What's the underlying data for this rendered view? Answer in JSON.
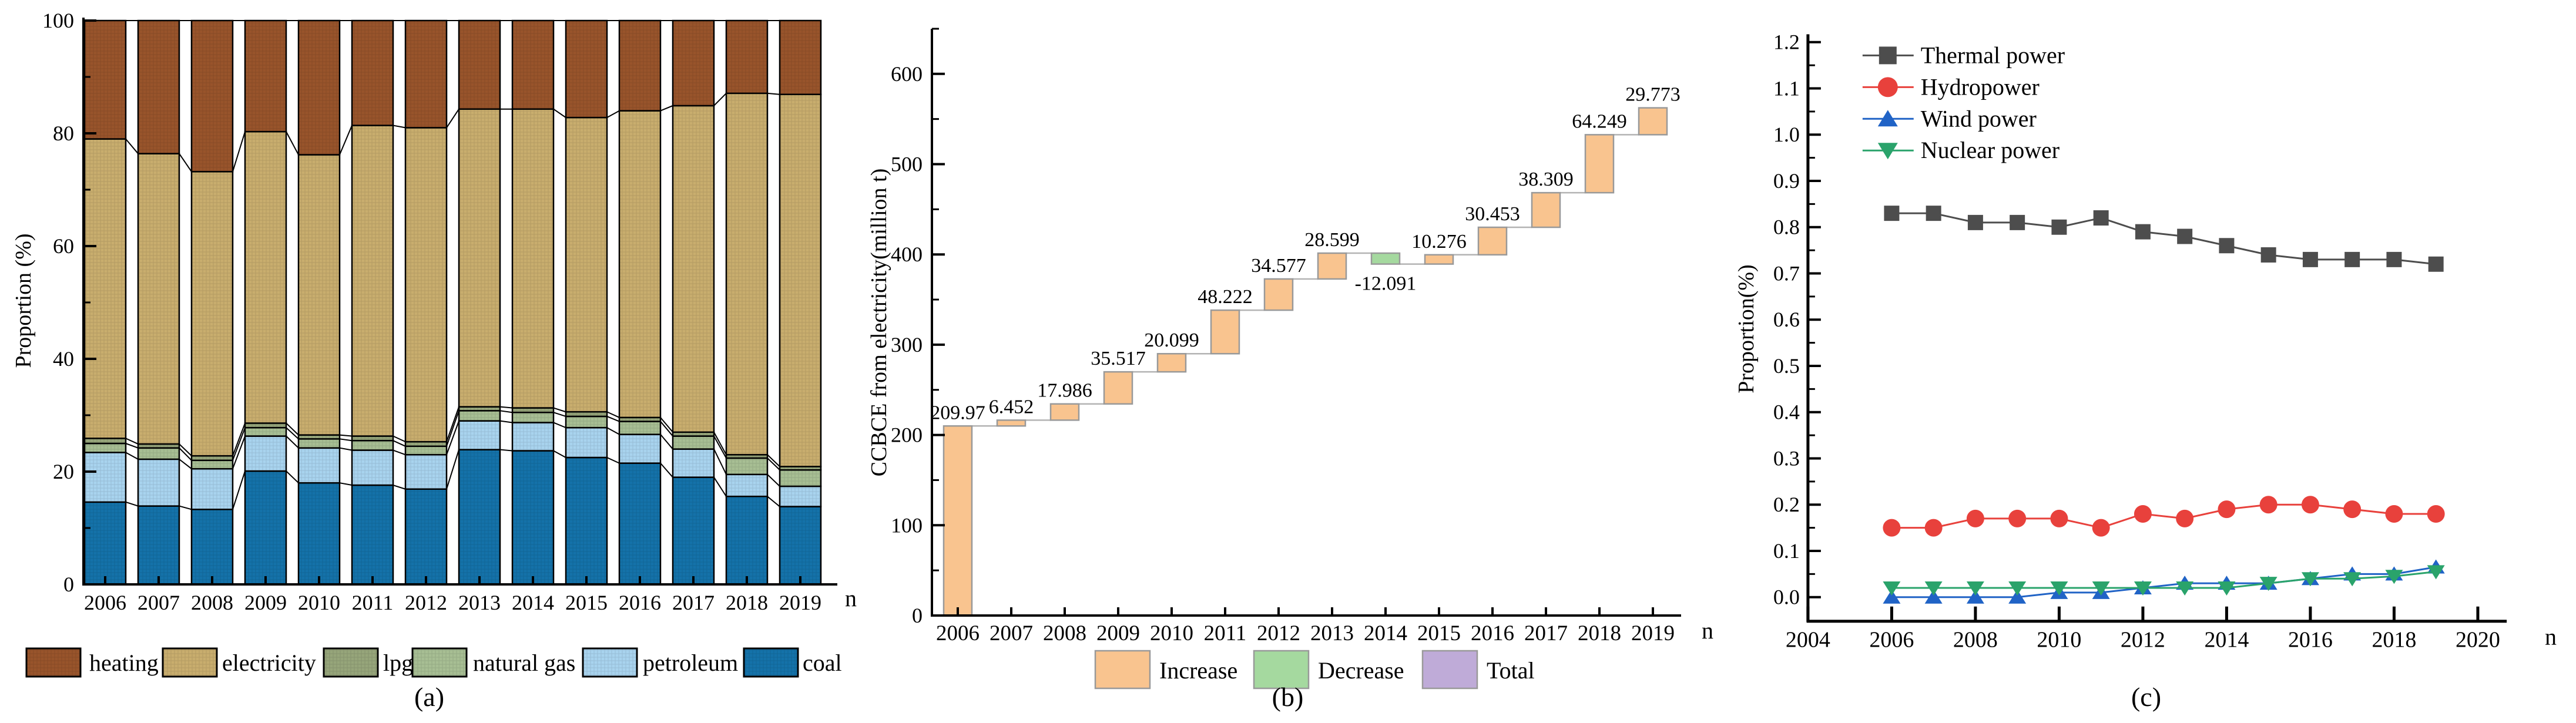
{
  "chart_data": [
    {
      "type": "bar",
      "stacked": true,
      "caption": "(a)",
      "ylabel": "Proportion (%)",
      "xlabel": "n",
      "ylim": [
        0,
        100
      ],
      "yticks": [
        0,
        20,
        40,
        60,
        80,
        100
      ],
      "y_minor_step": 10,
      "categories": [
        "2006",
        "2007",
        "2008",
        "2009",
        "2010",
        "2011",
        "2012",
        "2013",
        "2014",
        "2015",
        "2016",
        "2017",
        "2018",
        "2019"
      ],
      "series": [
        {
          "name": "coal",
          "color": "#1472A9",
          "values": [
            14.6,
            13.9,
            13.3,
            20.1,
            18.0,
            17.6,
            16.9,
            23.9,
            23.7,
            22.5,
            21.5,
            19.0,
            15.6,
            13.8
          ]
        },
        {
          "name": "petroleum",
          "color": "#A8D3EE",
          "values": [
            8.8,
            8.3,
            7.2,
            6.2,
            6.2,
            6.2,
            6.1,
            5.1,
            5.0,
            5.3,
            5.1,
            5.0,
            3.9,
            3.6
          ]
        },
        {
          "name": "natural gas",
          "color": "#A7BE93",
          "values": [
            1.6,
            2.0,
            1.5,
            1.5,
            1.6,
            1.7,
            1.5,
            1.8,
            1.8,
            2.0,
            2.3,
            2.3,
            2.9,
            2.9
          ]
        },
        {
          "name": "lpg",
          "color": "#96A57A",
          "values": [
            0.9,
            0.7,
            0.8,
            0.8,
            0.7,
            0.8,
            0.8,
            0.7,
            0.8,
            0.8,
            0.7,
            0.7,
            0.6,
            0.6
          ]
        },
        {
          "name": "electricity",
          "color": "#C8AD6E",
          "values": [
            53.1,
            51.5,
            50.4,
            51.7,
            49.7,
            55.1,
            55.7,
            52.8,
            53.0,
            52.2,
            54.4,
            57.9,
            64.1,
            66.0
          ]
        },
        {
          "name": "heating",
          "color": "#98542B",
          "values": [
            21.0,
            23.6,
            26.8,
            19.7,
            23.8,
            18.6,
            19.0,
            15.7,
            15.7,
            17.2,
            16.0,
            15.1,
            12.9,
            13.1
          ]
        }
      ],
      "legend_order": [
        "heating",
        "electricity",
        "lpg",
        "natural gas",
        "petroleum",
        "coal"
      ]
    },
    {
      "type": "waterfall",
      "caption": "(b)",
      "ylabel": "CCBCE from electricity(million t)",
      "xlabel": "n",
      "ylim": [
        0,
        650
      ],
      "yticks": [
        0,
        100,
        200,
        300,
        400,
        500,
        600
      ],
      "y_minor_step": 50,
      "categories": [
        "2006",
        "2007",
        "2008",
        "2009",
        "2010",
        "2011",
        "2012",
        "2013",
        "2014",
        "2015",
        "2016",
        "2017",
        "2018",
        "2019"
      ],
      "values": [
        209.97,
        6.452,
        17.986,
        35.517,
        20.099,
        48.222,
        34.577,
        28.599,
        -12.091,
        10.276,
        30.453,
        38.309,
        64.249,
        29.773
      ],
      "bar_labels": [
        "209.97",
        "6.452",
        "17.986",
        "35.517",
        "20.099",
        "48.222",
        "34.577",
        "28.599",
        "-12.091",
        "10.276",
        "30.453",
        "38.309",
        "64.249",
        "29.773"
      ],
      "colors": {
        "increase": "#F9C48F",
        "decrease": "#A5D99F",
        "total": "#BFABD8",
        "border": "#999999",
        "connector": "#B3B3B3"
      },
      "legend": [
        {
          "label": "Increase",
          "color": "#F9C48F"
        },
        {
          "label": "Decrease",
          "color": "#A5D99F"
        },
        {
          "label": "Total",
          "color": "#BFABD8"
        }
      ]
    },
    {
      "type": "line",
      "caption": "(c)",
      "ylabel": "Proportion(%)",
      "xlabel": "n",
      "xlim": [
        2004,
        2021
      ],
      "ylim": [
        0,
        1.2
      ],
      "xticks": [
        2004,
        2006,
        2008,
        2010,
        2012,
        2014,
        2016,
        2018,
        2020
      ],
      "ytick_labels": [
        "0.0",
        "0.1",
        "0.2",
        "0.3",
        "0.4",
        "0.5",
        "0.6",
        "0.7",
        "0.8",
        "0.9",
        "1.0",
        "1.1",
        "1.2"
      ],
      "x": [
        2006,
        2007,
        2008,
        2009,
        2010,
        2011,
        2012,
        2013,
        2014,
        2015,
        2016,
        2017,
        2018,
        2019
      ],
      "series": [
        {
          "name": "Thermal power",
          "color": "#4D4D4D",
          "marker": "square",
          "values": [
            0.83,
            0.83,
            0.81,
            0.81,
            0.8,
            0.82,
            0.79,
            0.78,
            0.76,
            0.74,
            0.73,
            0.73,
            0.73,
            0.72
          ]
        },
        {
          "name": "Hydropower",
          "color": "#E8413C",
          "marker": "circle",
          "values": [
            0.15,
            0.15,
            0.17,
            0.17,
            0.17,
            0.15,
            0.18,
            0.17,
            0.19,
            0.2,
            0.2,
            0.19,
            0.18,
            0.18
          ]
        },
        {
          "name": "Wind power",
          "color": "#2063C6",
          "marker": "triangle-up",
          "values": [
            0.0,
            0.0,
            0.0,
            0.0,
            0.01,
            0.01,
            0.02,
            0.03,
            0.03,
            0.03,
            0.04,
            0.05,
            0.05,
            0.065
          ]
        },
        {
          "name": "Nuclear power",
          "color": "#2AA36B",
          "marker": "triangle-down",
          "values": [
            0.02,
            0.02,
            0.02,
            0.02,
            0.02,
            0.02,
            0.02,
            0.02,
            0.02,
            0.03,
            0.04,
            0.04,
            0.045,
            0.055
          ]
        }
      ]
    }
  ]
}
